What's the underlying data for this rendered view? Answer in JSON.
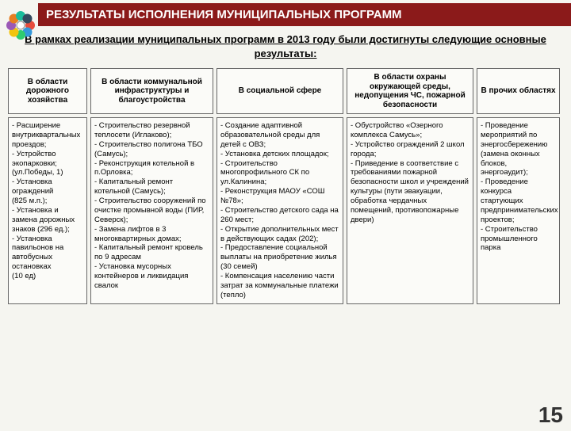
{
  "title": "РЕЗУЛЬТАТЫ ИСПОЛНЕНИЯ МУНИЦИПАЛЬНЫХ ПРОГРАММ",
  "subtitle": "В рамках реализации муниципальных программ в 2013 году были достигнуты следующие основные результаты:",
  "page_number": "15",
  "logo_colors": [
    "#e74c3c",
    "#3498db",
    "#2ecc71",
    "#f1c40f",
    "#9b59b6",
    "#e67e22",
    "#1abc9c",
    "#34495e"
  ],
  "columns": {
    "headers": [
      "В области дорожного хозяйства",
      "В области коммунальной инфраструктуры и благоустройства",
      "В социальной сфере",
      "В области охраны окружающей среды, недопущения ЧС, пожарной безопасности",
      "В прочих областях"
    ],
    "bodies": [
      "- Расширение внутриквартальных проездов;\n- Устройство экопарковки;\n(ул.Победы, 1)\n- Установка ограждений\n(825 м.п.);\n- Установка и замена дорожных знаков (296 ед.);\n- Установка павильонов на автобусных остановках\n(10 ед)",
      "- Строительство резервной теплосети (Иглаково);\n- Строительство полигона ТБО (Самусь);\n- Реконструкция котельной в п.Орловка;\n- Капитальный ремонт котельной (Самусь);\n- Строительство сооружений по очистке промывной воды (ПИР, Северск);\n- Замена лифтов в 3 многоквартирных домах;\n- Капитальный ремонт кровель по 9 адресам\n- Установка мусорных контейнеров и ликвидация свалок",
      "- Создание адаптивной образовательной среды для детей с ОВЗ;\n- Установка детских площадок;\n- Строительство многопрофильного СК по ул.Калинина;\n- Реконструкция МАОУ «СОШ №78»;\n- Строительство детского сада на 260 мест;\n- Открытие дополнительных мест в действующих садах (202);\n- Предоставление социальной выплаты на приобретение жилья (30 семей)\n- Компенсация населению части затрат за коммунальные платежи (тепло)",
      "- Обустройство «Озерного комплекса Самусь»;\n- Устройство ограждений 2 школ города;\n- Приведение в соответствие с требованиями пожарной безопасности школ и учреждений культуры (пути эвакуации, обработка чердачных помещений, противопожарные двери)",
      "- Проведение мероприятий по энергосбережению (замена оконных блоков, энергоаудит);\n- Проведение конкурса стартующих предпринимательских проектов;\n- Строительство промышленного парка"
    ]
  }
}
